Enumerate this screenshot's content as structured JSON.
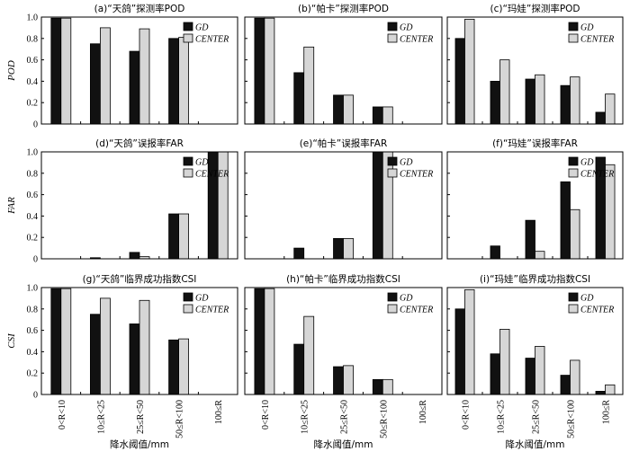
{
  "chart_data": [
    {
      "type": "bar",
      "title": "(a)“天鸽”探测率POD",
      "ylabel": "POD",
      "xlabel": "",
      "ylim": [
        0,
        1.0
      ],
      "yticks": [
        "0",
        "0.2",
        "0.4",
        "0.6",
        "0.8",
        "1.0"
      ],
      "categories": [
        "0<R<10",
        "10≤R<25",
        "25≤R<50",
        "50≤R<100",
        "100≤R"
      ],
      "series": [
        {
          "name": "GD",
          "values": [
            0.99,
            0.75,
            0.68,
            0.8,
            0.0
          ]
        },
        {
          "name": "CENTER",
          "values": [
            0.99,
            0.9,
            0.89,
            0.81,
            0.0
          ]
        }
      ]
    },
    {
      "type": "bar",
      "title": "(b)“帕卡”探测率POD",
      "ylabel": "",
      "xlabel": "",
      "ylim": [
        0,
        1.0
      ],
      "yticks": [
        "0",
        "0.2",
        "0.4",
        "0.6",
        "0.8",
        "1.0"
      ],
      "categories": [
        "0<R<10",
        "10≤R<25",
        "25≤R<50",
        "50≤R<100",
        "100≤R"
      ],
      "series": [
        {
          "name": "GD",
          "values": [
            0.99,
            0.48,
            0.27,
            0.16,
            0.0
          ]
        },
        {
          "name": "CENTER",
          "values": [
            0.99,
            0.72,
            0.27,
            0.16,
            0.0
          ]
        }
      ]
    },
    {
      "type": "bar",
      "title": "(c)“玛娃”探测率POD",
      "ylabel": "",
      "xlabel": "",
      "ylim": [
        0,
        1.0
      ],
      "yticks": [
        "0",
        "0.2",
        "0.4",
        "0.6",
        "0.8",
        "1.0"
      ],
      "categories": [
        "0<R<10",
        "10≤R<25",
        "25≤R<50",
        "50≤R<100",
        "100≤R"
      ],
      "series": [
        {
          "name": "GD",
          "values": [
            0.8,
            0.4,
            0.42,
            0.36,
            0.11
          ]
        },
        {
          "name": "CENTER",
          "values": [
            0.98,
            0.6,
            0.46,
            0.44,
            0.28
          ]
        }
      ]
    },
    {
      "type": "bar",
      "title": "(d)“天鸽”误报率FAR",
      "ylabel": "FAR",
      "xlabel": "",
      "ylim": [
        0,
        1.0
      ],
      "yticks": [
        "0",
        "0.2",
        "0.4",
        "0.6",
        "0.8",
        "1.0"
      ],
      "categories": [
        "0<R<10",
        "10≤R<25",
        "25≤R<50",
        "50≤R<100",
        "100≤R"
      ],
      "series": [
        {
          "name": "GD",
          "values": [
            0.0,
            0.01,
            0.06,
            0.42,
            1.0
          ]
        },
        {
          "name": "CENTER",
          "values": [
            0.0,
            0.0,
            0.02,
            0.42,
            1.0
          ]
        }
      ]
    },
    {
      "type": "bar",
      "title": "(e)“帕卡”误报率FAR",
      "ylabel": "",
      "xlabel": "",
      "ylim": [
        0,
        1.0
      ],
      "yticks": [
        "0",
        "0.2",
        "0.4",
        "0.6",
        "0.8",
        "1.0"
      ],
      "categories": [
        "0<R<10",
        "10≤R<25",
        "25≤R<50",
        "50≤R<100",
        "100≤R"
      ],
      "series": [
        {
          "name": "GD",
          "values": [
            0.0,
            0.1,
            0.19,
            1.0,
            0.0
          ]
        },
        {
          "name": "CENTER",
          "values": [
            0.0,
            0.0,
            0.19,
            1.0,
            0.0
          ]
        }
      ]
    },
    {
      "type": "bar",
      "title": "(f)“玛娃”误报率FAR",
      "ylabel": "",
      "xlabel": "",
      "ylim": [
        0,
        1.0
      ],
      "yticks": [
        "0",
        "0.2",
        "0.4",
        "0.6",
        "0.8",
        "1.0"
      ],
      "categories": [
        "0<R<10",
        "10≤R<25",
        "25≤R<50",
        "50≤R<100",
        "100≤R"
      ],
      "series": [
        {
          "name": "GD",
          "values": [
            0.0,
            0.12,
            0.36,
            0.72,
            0.95
          ]
        },
        {
          "name": "CENTER",
          "values": [
            0.0,
            0.0,
            0.07,
            0.46,
            0.88
          ]
        }
      ]
    },
    {
      "type": "bar",
      "title": "(g)“天鸽”临界成功指数CSI",
      "ylabel": "CSI",
      "xlabel": "降水阈值/mm",
      "ylim": [
        0,
        1.0
      ],
      "yticks": [
        "0",
        "0.2",
        "0.4",
        "0.6",
        "0.8",
        "1.0"
      ],
      "categories": [
        "0<R<10",
        "10≤R<25",
        "25≤R<50",
        "50≤R<100",
        "100≤R"
      ],
      "series": [
        {
          "name": "GD",
          "values": [
            0.99,
            0.75,
            0.66,
            0.51,
            0.0
          ]
        },
        {
          "name": "CENTER",
          "values": [
            0.99,
            0.9,
            0.88,
            0.52,
            0.0
          ]
        }
      ]
    },
    {
      "type": "bar",
      "title": "(h)“帕卡”临界成功指数CSI",
      "ylabel": "",
      "xlabel": "降水阈值/mm",
      "ylim": [
        0,
        1.0
      ],
      "yticks": [
        "0",
        "0.2",
        "0.4",
        "0.6",
        "0.8",
        "1.0"
      ],
      "categories": [
        "0<R<10",
        "10≤R<25",
        "25≤R<50",
        "50≤R<100",
        "100≤R"
      ],
      "series": [
        {
          "name": "GD",
          "values": [
            0.99,
            0.47,
            0.26,
            0.14,
            0.0
          ]
        },
        {
          "name": "CENTER",
          "values": [
            0.99,
            0.73,
            0.27,
            0.14,
            0.0
          ]
        }
      ]
    },
    {
      "type": "bar",
      "title": "(i)“玛娃”临界成功指数CSI",
      "ylabel": "",
      "xlabel": "降水阈值/mm",
      "ylim": [
        0,
        1.0
      ],
      "yticks": [
        "0",
        "0.2",
        "0.4",
        "0.6",
        "0.8",
        "1.0"
      ],
      "categories": [
        "0<R<10",
        "10≤R<25",
        "25≤R<50",
        "50≤R<100",
        "100≤R"
      ],
      "series": [
        {
          "name": "GD",
          "values": [
            0.8,
            0.38,
            0.34,
            0.18,
            0.03
          ]
        },
        {
          "name": "CENTER",
          "values": [
            0.98,
            0.61,
            0.45,
            0.32,
            0.09
          ]
        }
      ]
    }
  ],
  "colors": {
    "GD": "#111111",
    "CENTER": "#d6d6d6"
  },
  "legend_position": "top-right"
}
